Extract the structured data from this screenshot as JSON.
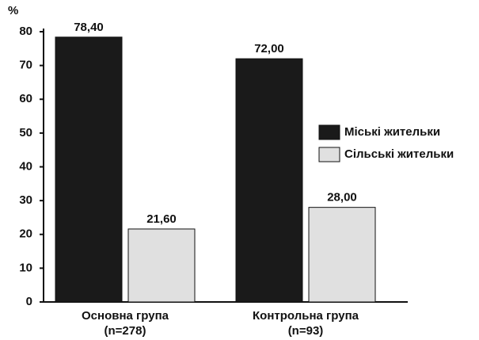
{
  "chart_data": {
    "type": "bar",
    "y_label": "%",
    "categories": [
      [
        "Основна група",
        "(n=278)"
      ],
      [
        "Контрольна група",
        "(n=93)"
      ]
    ],
    "series": [
      {
        "name": "Міські жительки",
        "color": "#1a1a1a",
        "values": [
          78.4,
          72.0
        ],
        "value_labels": [
          "78,40",
          "72,00"
        ]
      },
      {
        "name": "Сільські жительки",
        "color": "#e0e0e0",
        "values": [
          21.6,
          28.0
        ],
        "value_labels": [
          "21,60",
          "28,00"
        ]
      }
    ],
    "ylim": [
      0,
      80
    ],
    "yticks": [
      0,
      10,
      20,
      30,
      40,
      50,
      60,
      70,
      80
    ],
    "grid": false
  }
}
